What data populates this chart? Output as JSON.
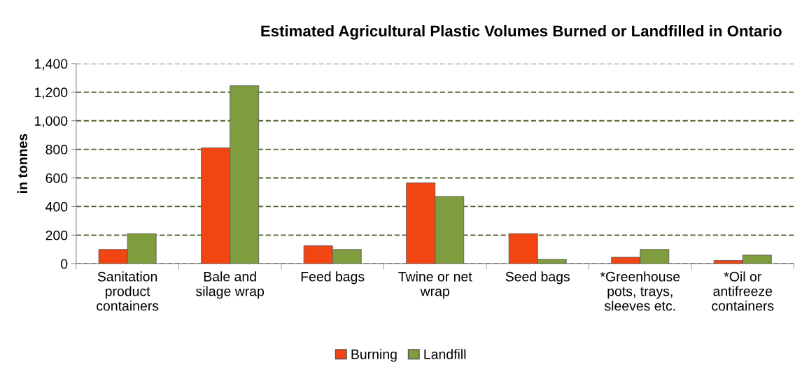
{
  "chart_data": {
    "type": "bar",
    "title": "Estimated Agricultural Plastic Volumes Burned or Landfilled in Ontario",
    "ylabel": "in tonnes",
    "categories": [
      "Sanitation\nproduct\ncontainers",
      "Bale and\nsilage wrap",
      "Feed bags",
      "Twine or net\nwrap",
      "Seed bags",
      "*Greenhouse\npots, trays,\nsleeves etc.",
      "*Oil or\nantifreeze\ncontainers"
    ],
    "series": [
      {
        "name": "Burning",
        "color": "#f24511",
        "values": [
          100,
          810,
          125,
          565,
          210,
          45,
          23
        ]
      },
      {
        "name": "Landfill",
        "color": "#7f9c3e",
        "values": [
          210,
          1245,
          100,
          470,
          30,
          100,
          60
        ]
      }
    ],
    "ylim": [
      0,
      1400
    ],
    "yticks": [
      {
        "value": 0,
        "label": "0"
      },
      {
        "value": 200,
        "label": "200"
      },
      {
        "value": 400,
        "label": "400"
      },
      {
        "value": 600,
        "label": "600"
      },
      {
        "value": 800,
        "label": "800"
      },
      {
        "value": 1000,
        "label": "1,000"
      },
      {
        "value": 1200,
        "label": "1,200"
      },
      {
        "value": 1400,
        "label": "1,400"
      }
    ],
    "grid": "y",
    "legend": "bottom"
  }
}
